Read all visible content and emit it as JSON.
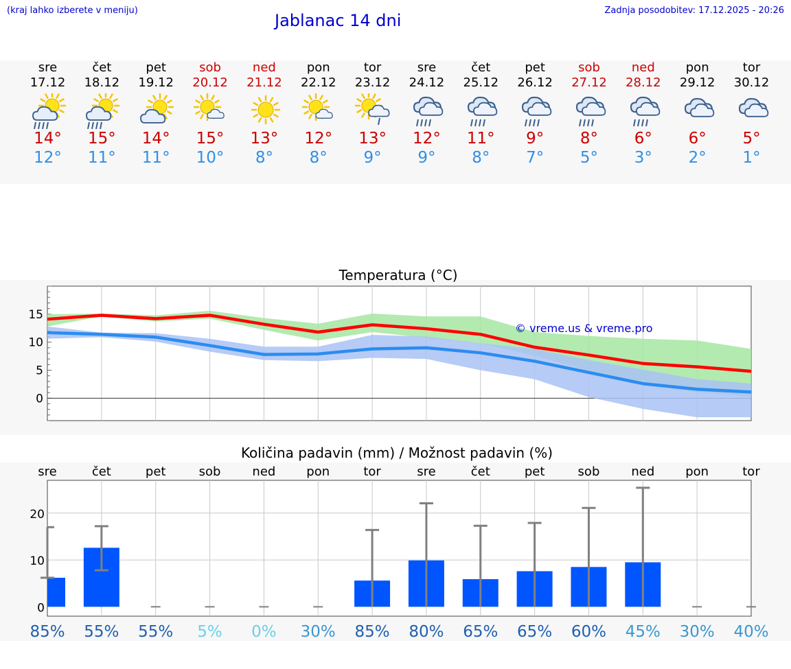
{
  "header": {
    "hint": "(kraj lahko izberete v meniju)",
    "title": "Jablanac 14 dni",
    "updated": "Zadnja posodobitev: 17.12.2025 - 20:26"
  },
  "days": [
    {
      "name": "sre",
      "date": "17.12",
      "weekend": false,
      "icon": "sun-cloud-rain-icon",
      "max": "14°",
      "min": "12°"
    },
    {
      "name": "čet",
      "date": "18.12",
      "weekend": false,
      "icon": "sun-cloud-rain-icon",
      "max": "15°",
      "min": "11°"
    },
    {
      "name": "pet",
      "date": "19.12",
      "weekend": false,
      "icon": "sun-cloud-icon",
      "max": "14°",
      "min": "11°"
    },
    {
      "name": "sob",
      "date": "20.12",
      "weekend": true,
      "icon": "sun-small-cloud-icon",
      "max": "15°",
      "min": "10°"
    },
    {
      "name": "ned",
      "date": "21.12",
      "weekend": true,
      "icon": "sun-icon",
      "max": "13°",
      "min": "8°"
    },
    {
      "name": "pon",
      "date": "22.12",
      "weekend": false,
      "icon": "sun-small-cloud-icon",
      "max": "12°",
      "min": "8°"
    },
    {
      "name": "tor",
      "date": "23.12",
      "weekend": false,
      "icon": "sun-cloud-light-rain-icon",
      "max": "13°",
      "min": "9°"
    },
    {
      "name": "sre",
      "date": "24.12",
      "weekend": false,
      "icon": "cloud-rain-icon",
      "max": "12°",
      "min": "9°"
    },
    {
      "name": "čet",
      "date": "25.12",
      "weekend": false,
      "icon": "cloud-rain-icon",
      "max": "11°",
      "min": "8°"
    },
    {
      "name": "pet",
      "date": "26.12",
      "weekend": false,
      "icon": "cloud-rain-icon",
      "max": "9°",
      "min": "7°"
    },
    {
      "name": "sob",
      "date": "27.12",
      "weekend": true,
      "icon": "cloud-rain-icon",
      "max": "8°",
      "min": "5°"
    },
    {
      "name": "ned",
      "date": "28.12",
      "weekend": true,
      "icon": "cloud-rain-icon",
      "max": "6°",
      "min": "3°"
    },
    {
      "name": "pon",
      "date": "29.12",
      "weekend": false,
      "icon": "cloud-icon",
      "max": "6°",
      "min": "2°"
    },
    {
      "name": "tor",
      "date": "30.12",
      "weekend": false,
      "icon": "cloud-icon",
      "max": "5°",
      "min": "1°"
    }
  ],
  "colors": {
    "max_line": "#ff0000",
    "min_line": "#2b8cf0",
    "max_band": "#a6e6a2",
    "min_band": "#a9c2f4",
    "bar": "#0055ff",
    "whisker": "#808080",
    "weekend": "#cc0000"
  },
  "chart_data": [
    {
      "type": "line",
      "title": "Temperatura (°C)",
      "watermark": "© vreme.us & vreme.pro",
      "ylim": [
        -4,
        20
      ],
      "yticks": [
        0,
        5,
        10,
        15
      ],
      "x": [
        "sre",
        "čet",
        "pet",
        "sob",
        "ned",
        "pon",
        "tor",
        "sre",
        "čet",
        "pet",
        "sob",
        "ned",
        "pon",
        "tor"
      ],
      "series": [
        {
          "name": "max",
          "values": [
            14.1,
            14.8,
            14.2,
            14.8,
            13.2,
            11.8,
            13.1,
            12.4,
            11.4,
            9.1,
            7.7,
            6.2,
            5.6,
            4.8
          ]
        },
        {
          "name": "min",
          "values": [
            11.7,
            11.4,
            10.9,
            9.4,
            7.8,
            7.9,
            8.8,
            9.0,
            8.1,
            6.6,
            4.6,
            2.6,
            1.6,
            1.1
          ]
        }
      ],
      "max_band": {
        "upper": [
          15.0,
          15.1,
          14.8,
          15.6,
          14.3,
          13.3,
          15.1,
          14.6,
          14.6,
          11.8,
          11.1,
          10.6,
          10.3,
          8.8
        ],
        "lower": [
          12.8,
          14.6,
          13.7,
          14.2,
          12.2,
          10.3,
          11.8,
          10.8,
          9.8,
          7.6,
          4.9,
          2.4,
          1.1,
          0.3
        ]
      },
      "min_band": {
        "upper": [
          12.8,
          11.7,
          11.6,
          10.6,
          9.2,
          9.2,
          11.3,
          11.0,
          9.8,
          8.8,
          6.8,
          5.1,
          3.4,
          2.6
        ],
        "lower": [
          10.6,
          10.9,
          10.1,
          8.3,
          6.8,
          6.6,
          7.2,
          7.0,
          5.0,
          3.4,
          0.2,
          -1.9,
          -3.4,
          -3.4
        ]
      }
    },
    {
      "type": "bar",
      "title": "Količina padavin (mm) / Možnost padavin (%)",
      "categories": [
        "sre",
        "čet",
        "pet",
        "sob",
        "ned",
        "pon",
        "tor",
        "sre",
        "čet",
        "pet",
        "sob",
        "ned",
        "pon",
        "tor"
      ],
      "ylim": [
        -2,
        27
      ],
      "yticks": [
        0,
        10,
        20
      ],
      "values": [
        6.2,
        12.6,
        0,
        0,
        0,
        0,
        5.6,
        9.9,
        5.9,
        7.6,
        8.5,
        9.5,
        0,
        0
      ],
      "error_low": [
        6.2,
        7.8,
        0,
        0,
        0,
        0,
        0,
        0,
        0,
        0,
        0,
        0,
        0,
        0
      ],
      "error_high": [
        17.0,
        17.2,
        0,
        0,
        0,
        0,
        16.4,
        22.1,
        17.3,
        17.9,
        21.1,
        25.4,
        0,
        0
      ],
      "probabilities": [
        "85%",
        "55%",
        "55%",
        "5%",
        "0%",
        "30%",
        "85%",
        "80%",
        "65%",
        "65%",
        "60%",
        "45%",
        "30%",
        "40%"
      ],
      "probability_values": [
        85,
        55,
        55,
        5,
        0,
        30,
        85,
        80,
        65,
        65,
        60,
        45,
        30,
        40
      ]
    }
  ]
}
